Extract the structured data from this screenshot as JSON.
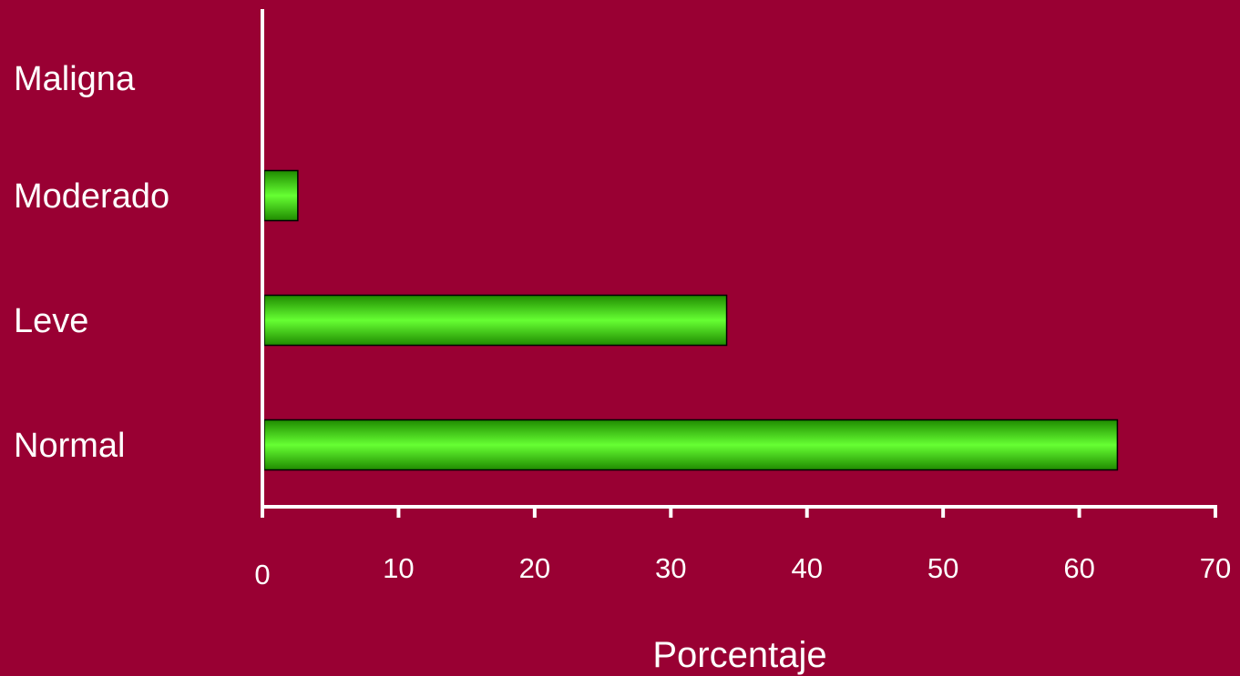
{
  "colors": {
    "background": "#990033",
    "axis": "#ffffff",
    "text": "#ffffff",
    "bar_fill_light": "#66ff33",
    "bar_fill_dark": "#1f8a00",
    "bar_stroke": "#000000"
  },
  "chart_data": {
    "type": "bar",
    "orientation": "horizontal",
    "categories": [
      "Maligna",
      "Moderado",
      "Leve",
      "Normal"
    ],
    "values": [
      0,
      2.6,
      34.1,
      62.8
    ],
    "xlabel": "Porcentaje",
    "ylabel": "",
    "xlim": [
      0,
      70
    ],
    "xticks": [
      "0",
      "10",
      "20",
      "30",
      "40",
      "50",
      "60",
      "70"
    ],
    "grid": false,
    "legend": "none"
  }
}
